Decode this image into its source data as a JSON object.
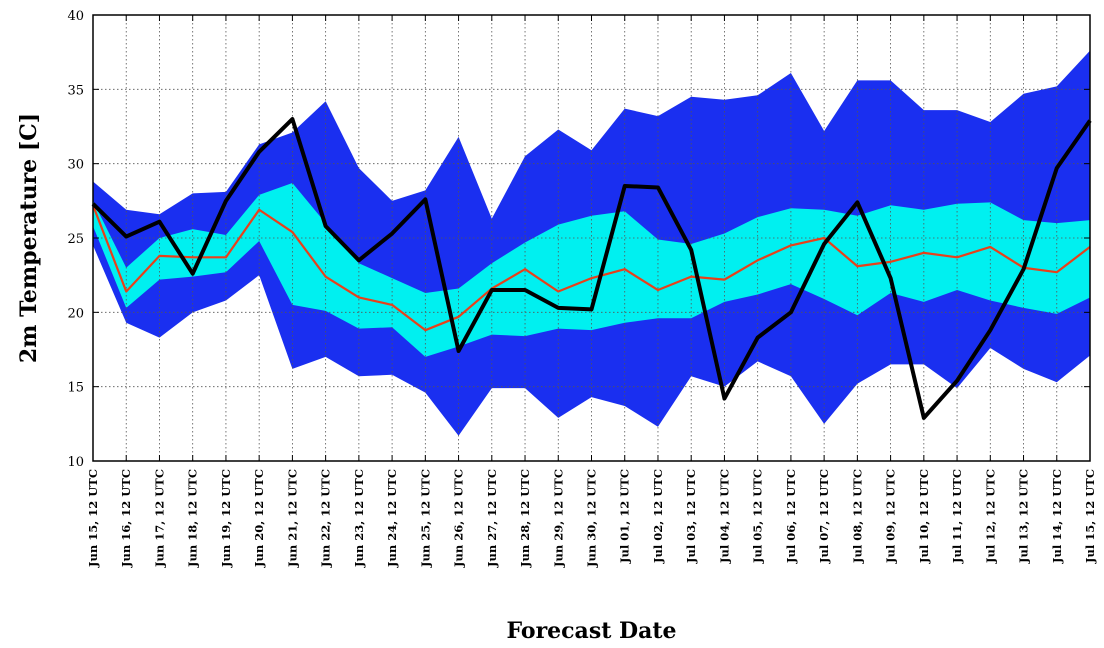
{
  "chart_data": {
    "type": "area",
    "xlabel": "Forecast Date",
    "ylabel": "2m Temperature [C]",
    "ylim": [
      10,
      40
    ],
    "yticks": [
      10,
      15,
      20,
      25,
      30,
      35,
      40
    ],
    "grid": true,
    "categories": [
      "Jun 15, 12 UTC",
      "Jun 16, 12 UTC",
      "Jun 17, 12 UTC",
      "Jun 18, 12 UTC",
      "Jun 19, 12 UTC",
      "Jun 20, 12 UTC",
      "Jun 21, 12 UTC",
      "Jun 22, 12 UTC",
      "Jun 23, 12 UTC",
      "Jun 24, 12 UTC",
      "Jun 25, 12 UTC",
      "Jun 26, 12 UTC",
      "Jun 27, 12 UTC",
      "Jun 28, 12 UTC",
      "Jun 29, 12 UTC",
      "Jun 30, 12 UTC",
      "Jul 01, 12 UTC",
      "Jul 02, 12 UTC",
      "Jul 03, 12 UTC",
      "Jul 04, 12 UTC",
      "Jul 05, 12 UTC",
      "Jul 06, 12 UTC",
      "Jul 07, 12 UTC",
      "Jul 08, 12 UTC",
      "Jul 09, 12 UTC",
      "Jul 10, 12 UTC",
      "Jul 11, 12 UTC",
      "Jul 12, 12 UTC",
      "Jul 13, 12 UTC",
      "Jul 14, 12 UTC",
      "Jul 15, 12 UTC"
    ],
    "outer_band": {
      "color": "#1a2ff0",
      "upper": [
        28.8,
        26.9,
        26.6,
        28.0,
        28.1,
        31.3,
        32.1,
        34.2,
        29.7,
        27.5,
        28.2,
        31.8,
        26.3,
        30.5,
        32.3,
        30.9,
        33.7,
        33.2,
        34.5,
        34.3,
        34.6,
        36.1,
        32.2,
        35.6,
        35.6,
        33.6,
        33.6,
        32.8,
        34.7,
        35.2,
        37.6
      ],
      "lower": [
        24.5,
        19.3,
        18.3,
        20.0,
        20.8,
        22.5,
        16.2,
        17.0,
        15.7,
        15.8,
        14.6,
        11.7,
        14.9,
        14.9,
        12.9,
        14.3,
        13.7,
        12.3,
        15.7,
        15.0,
        16.7,
        15.7,
        12.5,
        15.2,
        16.5,
        16.5,
        14.9,
        17.6,
        16.2,
        15.3,
        17.1
      ]
    },
    "inner_band": {
      "color": "#00f0f0",
      "upper": [
        27.5,
        23.0,
        25.0,
        25.6,
        25.2,
        27.9,
        28.7,
        26.0,
        23.3,
        22.3,
        21.3,
        21.6,
        23.3,
        24.7,
        25.9,
        26.5,
        26.8,
        24.9,
        24.6,
        25.3,
        26.4,
        27.0,
        26.9,
        26.5,
        27.2,
        26.9,
        27.3,
        27.4,
        26.2,
        26.0,
        26.2
      ],
      "lower": [
        25.8,
        20.3,
        22.2,
        22.4,
        22.7,
        24.8,
        20.5,
        20.1,
        18.9,
        19.0,
        17.0,
        17.7,
        18.5,
        18.4,
        18.9,
        18.8,
        19.3,
        19.6,
        19.6,
        20.7,
        21.2,
        21.9,
        20.9,
        19.8,
        21.3,
        20.7,
        21.5,
        20.8,
        20.3,
        19.9,
        21.0
      ]
    },
    "series": [
      {
        "color": "#e8401a",
        "values": [
          27.2,
          21.4,
          23.8,
          23.7,
          23.7,
          26.9,
          25.4,
          22.4,
          21.0,
          20.5,
          18.8,
          19.7,
          21.6,
          22.9,
          21.4,
          22.3,
          22.9,
          21.5,
          22.4,
          22.2,
          23.5,
          24.5,
          25.0,
          23.1,
          23.4,
          24.0,
          23.7,
          24.4,
          23.0,
          22.7,
          24.4
        ]
      },
      {
        "color": "#000000",
        "values": [
          27.3,
          25.1,
          26.1,
          22.6,
          27.5,
          30.8,
          33.0,
          25.8,
          23.5,
          25.3,
          27.6,
          17.4,
          21.5,
          21.5,
          20.3,
          20.2,
          28.5,
          28.4,
          24.2,
          14.2,
          18.3,
          20.0,
          24.6,
          27.4,
          22.3,
          12.9,
          15.4,
          18.8,
          22.9,
          29.7,
          32.9
        ]
      }
    ]
  }
}
